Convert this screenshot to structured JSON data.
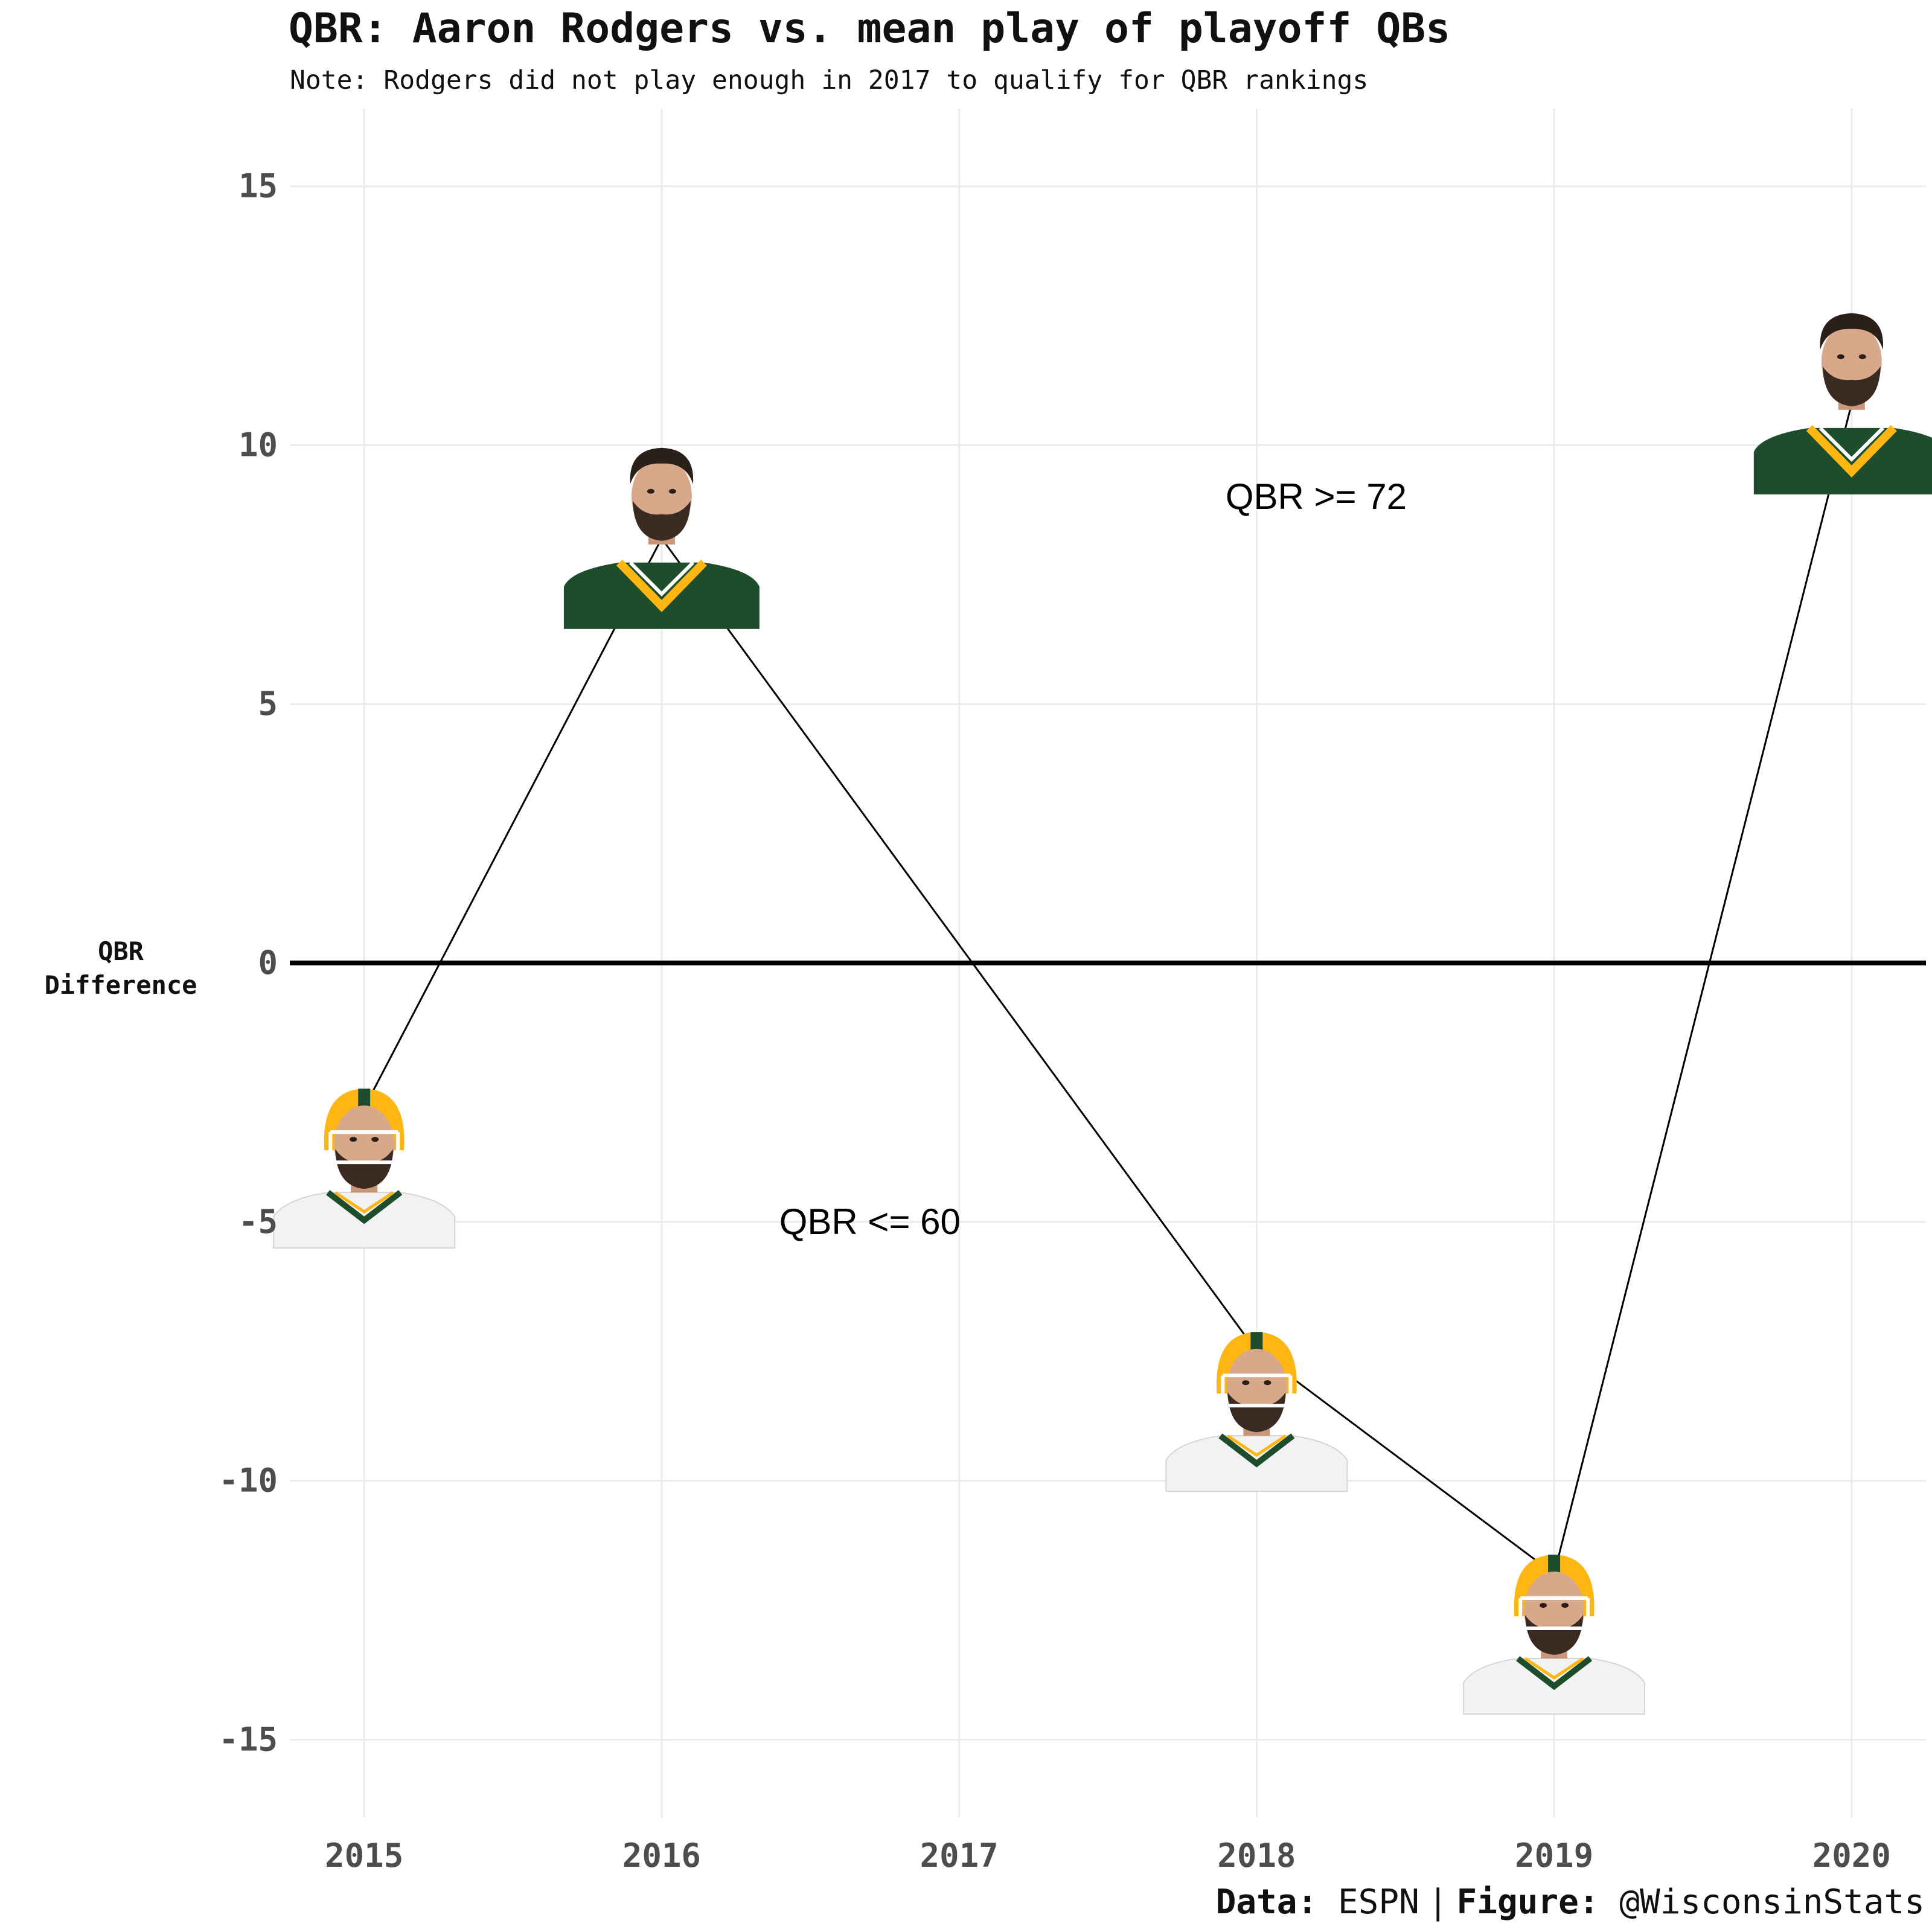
{
  "chart_data": {
    "type": "line",
    "title": "QBR: Aaron Rodgers vs. mean play of playoff QBs",
    "subtitle": "Note: Rodgers did not play enough in 2017 to qualify for QBR rankings",
    "ylabel": "QBR\nDifference",
    "xlabel": "",
    "x": [
      2015,
      2016,
      2018,
      2019,
      2020
    ],
    "y": [
      -2.8,
      8.2,
      -7.5,
      -11.8,
      10.8
    ],
    "point_images": [
      "helmet-photo",
      "jersey-photo",
      "helmet-photo",
      "helmet-photo",
      "jersey-photo"
    ],
    "xlim": [
      2014.75,
      2020.25
    ],
    "ylim": [
      -16.5,
      16.5
    ],
    "xticks": [
      2015,
      2016,
      2017,
      2018,
      2019,
      2020
    ],
    "yticks": [
      -15,
      -10,
      -5,
      0,
      5,
      10,
      15
    ],
    "reference_line": 0,
    "annotations": [
      {
        "text": "QBR >= 72",
        "x": 2018.2,
        "y": 9.0
      },
      {
        "text": "QBR <= 60",
        "x": 2016.7,
        "y": -5.0
      }
    ],
    "grid": true,
    "legend": "none"
  },
  "caption": {
    "data_label": "Data:",
    "data_value": "ESPN",
    "separator": "|",
    "figure_label": "Figure:",
    "figure_value": "@WisconsinStats"
  },
  "colors": {
    "grid": "#ebebeb",
    "line": "#000000",
    "text": "#111111",
    "tick_text": "#4d4d4d",
    "green": "#1d4d2b",
    "gold": "#ffb612"
  }
}
